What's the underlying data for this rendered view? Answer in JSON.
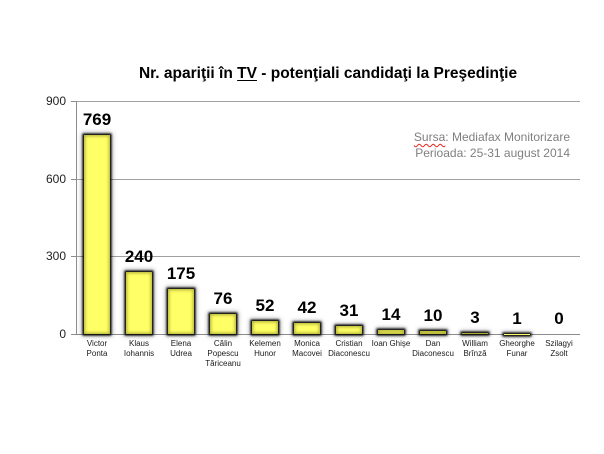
{
  "chart_data": {
    "type": "bar",
    "title": "Nr. apariţii în TV - potenţiali candidaţi la Preşedinţie",
    "title_underlined": "TV",
    "categories": [
      "Victor\nPonta",
      "Klaus\nIohannis",
      "Elena\nUdrea",
      "Călin\nPopescu\nTăriceanu",
      "Kelemen\nHunor",
      "Monica\nMacovei",
      "Cristian\nDiaconescu",
      "Ioan Ghişe",
      "Dan\nDiaconescu",
      "William\nBrînză",
      "Gheorghe\nFunar",
      "Szilagyi\nZsolt"
    ],
    "values": [
      769,
      240,
      175,
      76,
      52,
      42,
      31,
      14,
      10,
      3,
      1,
      0
    ],
    "ylim": [
      0,
      900
    ],
    "yticks": [
      0,
      300,
      600,
      900
    ],
    "grid": true,
    "data_labels": true,
    "annotations": [
      "Sursa: Mediafax Monitorizare",
      "Perioada: 25-31 august 2014"
    ],
    "colors": {
      "bar_fill": "#ffff66",
      "bar_glow": "#000000",
      "gridline": "#a0a0a0",
      "annotation": "#7f7f7f"
    }
  }
}
